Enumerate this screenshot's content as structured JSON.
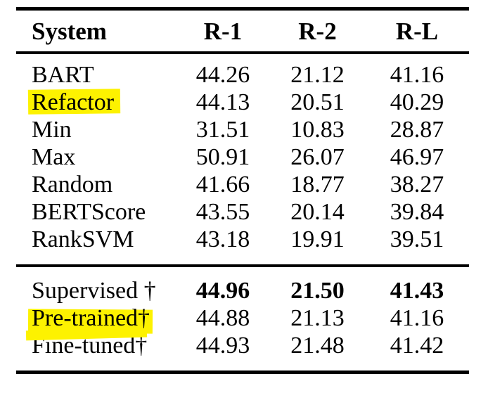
{
  "table": {
    "highlight_color": "#fdf200",
    "text_color": "#000000",
    "columns": [
      "System",
      "R-1",
      "R-2",
      "R-L"
    ],
    "groups": [
      {
        "name": "unsupervised-and-baseline-systems",
        "rows": [
          {
            "system": "BART",
            "r1": "44.26",
            "r2": "21.12",
            "rl": "41.16",
            "highlighted": false,
            "bold_scores": false
          },
          {
            "system": "Refactor",
            "r1": "44.13",
            "r2": "20.51",
            "rl": "40.29",
            "highlighted": true,
            "bold_scores": false
          },
          {
            "system": "Min",
            "r1": "31.51",
            "r2": "10.83",
            "rl": "28.87",
            "highlighted": false,
            "bold_scores": false
          },
          {
            "system": "Max",
            "r1": "50.91",
            "r2": "26.07",
            "rl": "46.97",
            "highlighted": false,
            "bold_scores": false
          },
          {
            "system": "Random",
            "r1": "41.66",
            "r2": "18.77",
            "rl": "38.27",
            "highlighted": false,
            "bold_scores": false
          },
          {
            "system": "BERTScore",
            "r1": "43.55",
            "r2": "20.14",
            "rl": "39.84",
            "highlighted": false,
            "bold_scores": false
          },
          {
            "system": "RankSVM",
            "r1": "43.18",
            "r2": "19.91",
            "rl": "39.51",
            "highlighted": false,
            "bold_scores": false
          }
        ]
      },
      {
        "name": "trained-systems",
        "rows": [
          {
            "system": "Supervised †",
            "r1": "44.96",
            "r2": "21.50",
            "rl": "41.43",
            "highlighted": false,
            "bold_scores": true
          },
          {
            "system": "Pre-trained†",
            "r1": "44.88",
            "r2": "21.13",
            "rl": "41.16",
            "highlighted": true,
            "bold_scores": false
          },
          {
            "system": "Fine-tuned†",
            "r1": "44.93",
            "r2": "21.48",
            "rl": "41.42",
            "highlighted": false,
            "bold_scores": false
          }
        ]
      }
    ]
  }
}
